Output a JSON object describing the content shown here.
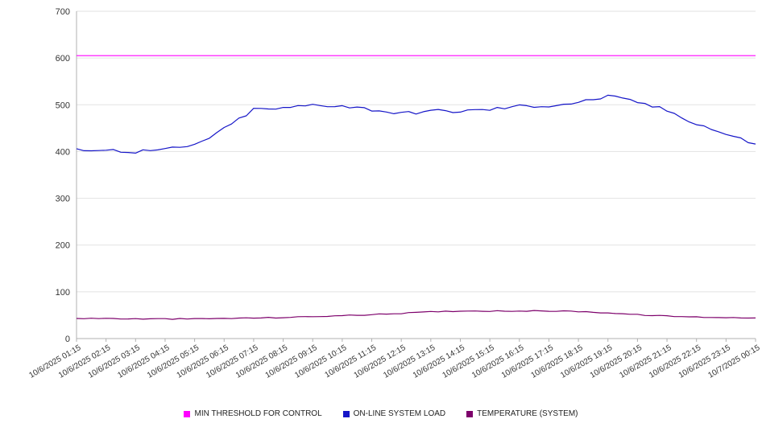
{
  "chart_data": {
    "type": "line",
    "title": "",
    "xlabel": "",
    "ylabel": "",
    "ylim": [
      0,
      700
    ],
    "ytick_interval": 100,
    "yticks": [
      0,
      100,
      200,
      300,
      400,
      500,
      600,
      700
    ],
    "grid": true,
    "legend_position": "bottom",
    "x": [
      "10/6/2025 01:15",
      "10/6/2025 02:15",
      "10/6/2025 03:15",
      "10/6/2025 04:15",
      "10/6/2025 05:15",
      "10/6/2025 06:15",
      "10/6/2025 07:15",
      "10/6/2025 08:15",
      "10/6/2025 09:15",
      "10/6/2025 10:15",
      "10/6/2025 11:15",
      "10/6/2025 12:15",
      "10/6/2025 13:15",
      "10/6/2025 14:15",
      "10/6/2025 15:15",
      "10/6/2025 16:15",
      "10/6/2025 17:15",
      "10/6/2025 18:15",
      "10/6/2025 19:15",
      "10/6/2025 20:15",
      "10/6/2025 21:15",
      "10/6/2025 22:15",
      "10/6/2025 23:15",
      "10/7/2025 00:15"
    ],
    "series": [
      {
        "name": "MIN THRESHOLD FOR CONTROL",
        "color": "#ff00ff",
        "jitter": 0,
        "values": [
          605,
          605,
          605,
          605,
          605,
          605,
          605,
          605,
          605,
          605,
          605,
          605,
          605,
          605,
          605,
          605,
          605,
          605,
          605,
          605,
          605,
          605,
          605,
          605
        ]
      },
      {
        "name": "ON-LINE SYSTEM LOAD",
        "color": "#1515c8",
        "jitter": 4,
        "values": [
          406,
          403,
          400,
          404,
          413,
          448,
          490,
          492,
          500,
          498,
          490,
          481,
          487,
          486,
          490,
          497,
          498,
          505,
          518,
          506,
          488,
          460,
          437,
          416
        ]
      },
      {
        "name": "TEMPERATURE (SYSTEM)",
        "color": "#7d006b",
        "jitter": 1,
        "values": [
          43,
          43,
          42,
          42,
          42,
          43,
          44,
          45,
          47,
          49,
          51,
          54,
          57,
          59,
          59,
          59,
          59,
          58,
          55,
          51,
          48,
          46,
          45,
          44
        ]
      }
    ]
  },
  "colors": {
    "grid": "#e2e2e2",
    "axis": "#b0b0b0",
    "tick_text": "#333333",
    "background": "#ffffff"
  }
}
